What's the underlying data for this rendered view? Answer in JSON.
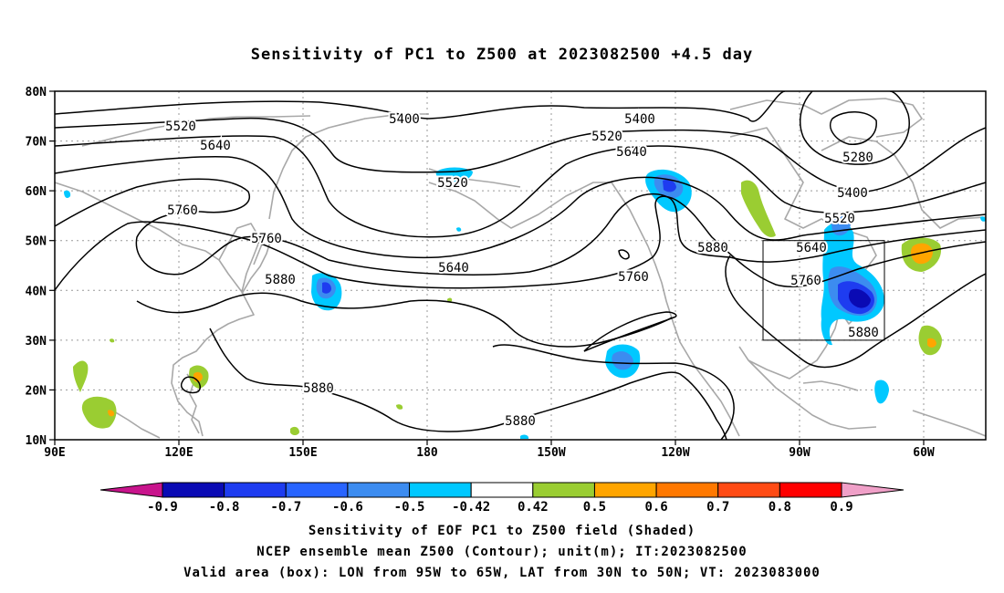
{
  "title": "Sensitivity of PC1 to Z500 at 2023082500 +4.5 day",
  "map": {
    "lat_ticks": [
      "80N",
      "70N",
      "60N",
      "50N",
      "40N",
      "30N",
      "20N",
      "10N"
    ],
    "lon_ticks": [
      "90E",
      "120E",
      "150E",
      "180",
      "150W",
      "120W",
      "90W",
      "60W"
    ],
    "contour_labels": [
      "5520",
      "5640",
      "5760",
      "5760",
      "5880",
      "5400",
      "5520",
      "5640",
      "5400",
      "5520",
      "5640",
      "5760",
      "5880",
      "5280",
      "5400",
      "5520",
      "5640",
      "5760",
      "5880",
      "5880",
      "5880"
    ],
    "valid_box": {
      "lon_from": "95W",
      "lon_to": "65W",
      "lat_from": "30N",
      "lat_to": "50N"
    }
  },
  "colorbar": {
    "labels": [
      "-0.9",
      "-0.8",
      "-0.7",
      "-0.6",
      "-0.5",
      "-0.42",
      "0.42",
      "0.5",
      "0.6",
      "0.7",
      "0.8",
      "0.9"
    ],
    "colors": [
      "#0a0ab4",
      "#1e3cf0",
      "#2864ff",
      "#3c8cf0",
      "#00c8ff",
      "#ffffff",
      "#9acd32",
      "#ffa500",
      "#ff7800",
      "#ff4b14",
      "#ff0000"
    ],
    "neg_arrow_color": "#c8148c",
    "pos_arrow_color": "#f0a0c8"
  },
  "captions": {
    "line1": "Sensitivity of EOF PC1 to Z500 field (Shaded)",
    "line2": "NCEP ensemble mean Z500 (Contour); unit(m); IT:2023082500",
    "line3": "Valid area (box): LON from 95W to 65W, LAT from 30N to 50N; VT: 2023083000"
  }
}
